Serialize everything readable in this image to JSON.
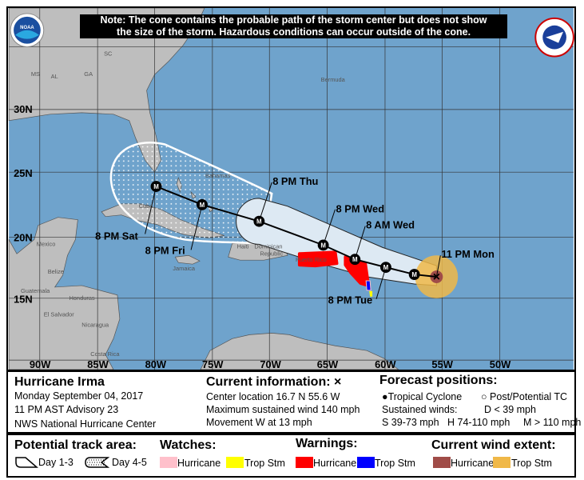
{
  "note": {
    "line1": "Note: The cone contains the probable path of the storm center but does not show",
    "line2": "the size of the storm. Hazardous conditions can occur outside of the cone."
  },
  "logos": {
    "left": "NOAA",
    "right": "NATIONAL WEATHER SERVICE"
  },
  "map": {
    "lon_labels": [
      "90W",
      "85W",
      "80W",
      "75W",
      "70W",
      "65W",
      "60W",
      "55W",
      "50W"
    ],
    "lat_labels": [
      "30N",
      "25N",
      "20N",
      "15N"
    ],
    "places": {
      "ms": "MS",
      "al": "AL",
      "ga": "GA",
      "sc": "SC",
      "bermuda": "Bermuda",
      "bahamas": "Bahamas",
      "cuba": "Cuba",
      "mexico": "Mexico",
      "belize": "Belize",
      "guatemala": "Guatemala",
      "honduras": "Honduras",
      "el_salvador": "El Salvador",
      "nicaragua": "Nicaragua",
      "costa_rica": "Costa Rica",
      "jamaica": "Jamaica",
      "haiti": "Haiti",
      "dominican": "Dominican",
      "republic": "Republic",
      "puerto_rico": "Puerto Rico"
    },
    "forecast_labels": {
      "mon": "11 PM Mon",
      "tue": "8 PM Tue",
      "wed_am": "8 AM Wed",
      "wed_pm": "8 PM Wed",
      "thu": "8 PM Thu",
      "fri": "8 PM Fri",
      "sat": "8 PM Sat"
    },
    "point_marker": "M",
    "colors": {
      "ocean": "#6fa3cc",
      "land": "#bebebe",
      "cone": "#dde9f3",
      "hurricane_warning": "#ff0000",
      "trop_storm_warning": "#0000ff",
      "trop_storm_watch": "#ffff00",
      "hurricane_watch": "#ffc0cb",
      "hurricane_wind": "#a04c48",
      "trop_storm_wind": "#f0b848"
    }
  },
  "info": {
    "storm_name": "Hurricane Irma",
    "date": "Monday September 04, 2017",
    "advisory": "11 PM AST Advisory 23",
    "center": "NWS National Hurricane Center",
    "current_title": "Current information: ×",
    "location": "Center location 16.7 N 55.6 W",
    "max_wind": "Maximum sustained wind 140 mph",
    "movement": "Movement W at 13 mph",
    "forecast_title": "Forecast positions:",
    "tropical_cyclone": "Tropical Cyclone",
    "post_tc": "Post/Potential TC",
    "sustained": "Sustained winds:",
    "d": "D < 39 mph",
    "s": "S 39-73 mph",
    "hh": "H 74-110 mph",
    "m": "M > 110 mph"
  },
  "legend": {
    "track_title": "Potential track area:",
    "day13": "Day 1-3",
    "day45": "Day 4-5",
    "watches_title": "Watches:",
    "warnings_title": "Warnings:",
    "wind_title": "Current wind extent:",
    "hurricane": "Hurricane",
    "trop_stm": "Trop Stm"
  }
}
